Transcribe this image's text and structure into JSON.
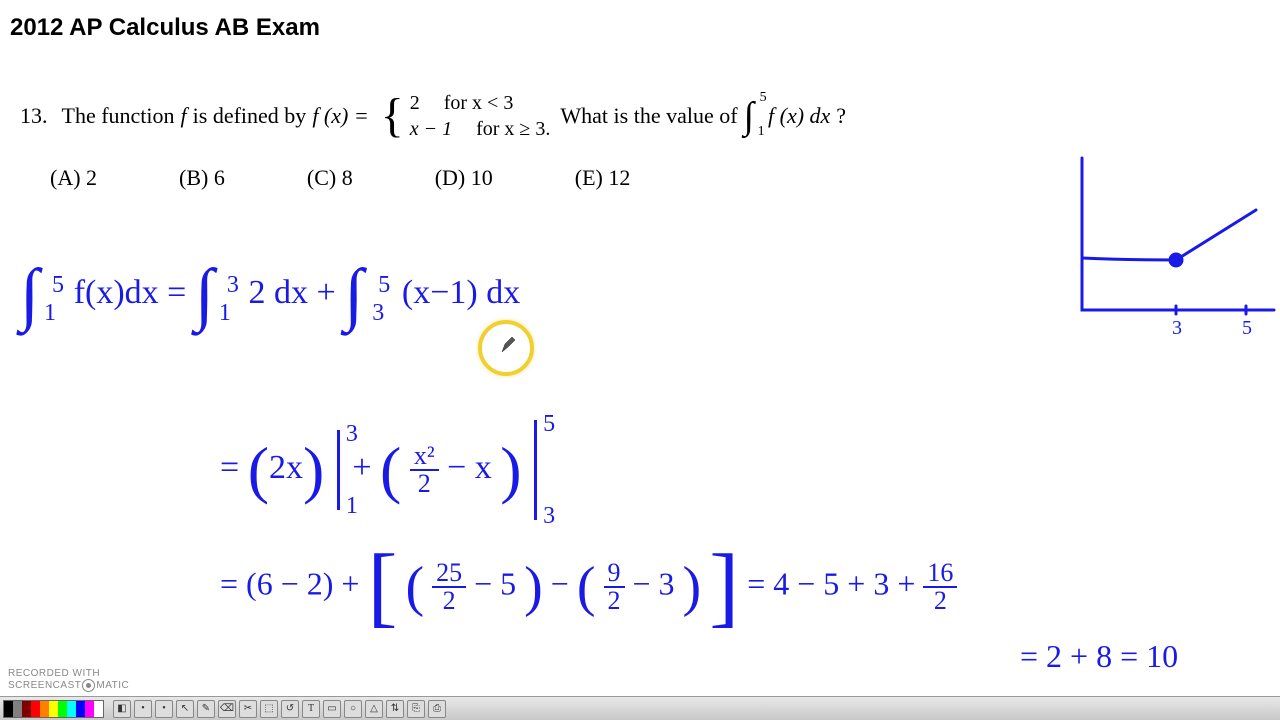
{
  "title": "2012 AP Calculus AB Exam",
  "question": {
    "number": "13.",
    "text_before": "The function ",
    "f_var": "f",
    "defined_by": " is defined by ",
    "fx": "f (x) = ",
    "case1_val": "2",
    "case1_cond": "for x < 3",
    "case2_val": "x − 1",
    "case2_cond": "for x ≥ 3.",
    "text_after": "  What is the value of ",
    "integral_low": "1",
    "integral_high": "5",
    "integrand": "f (x) dx",
    "qmark": " ?"
  },
  "answers": {
    "A": "(A)  2",
    "B": "(B)  6",
    "C": "(C)  8",
    "D": "(D)  10",
    "E": "(E)  12"
  },
  "handwork": {
    "line1_a": "∫",
    "l1_up1": "5",
    "l1_lo1": "1",
    "l1_mid1": " f(x)dx  =  ",
    "l1_up2": "3",
    "l1_lo2": "1",
    "l1_mid2": " 2 dx  + ",
    "l1_up3": "5",
    "l1_lo3": "3",
    "l1_mid3": " (x−1) dx",
    "line2_eq": "=  ",
    "l2_a": "(2x)",
    "l2_bar1_top": "3",
    "l2_bar1_bot": "1",
    "l2_plus": "  +   ",
    "l2_b_n": "x²",
    "l2_b_d": "2",
    "l2_b_rest": " − x",
    "l2_bar2_top": "5",
    "l2_bar2_bot": "3",
    "line3_eq": "=  ",
    "l3_a": "(6 − 2)  + ",
    "l3_br_a_n": "25",
    "l3_br_a_d": "2",
    "l3_br_a_rest": " − 5",
    "l3_minus": " − ",
    "l3_br_b_n": "9",
    "l3_br_b_d": "2",
    "l3_br_b_rest": " − 3",
    "l3_tail": " = 4 − 5 + 3 + ",
    "l3_tail_n": "16",
    "l3_tail_d": "2",
    "line4": "= 2 + 8 = 10"
  },
  "graph": {
    "stroke": "#1a1ae6",
    "stroke_width": 3,
    "x_tick1": "3",
    "x_tick2": "5"
  },
  "watermark": {
    "pre": "RECORDED WITH",
    "brand_a": "SCREENCAST",
    "brand_b": "MATIC"
  },
  "taskbar": {
    "palette": [
      "#000000",
      "#808080",
      "#800000",
      "#ff0000",
      "#ff8000",
      "#ffff00",
      "#00ff00",
      "#00ffff",
      "#0000ff",
      "#ff00ff",
      "#ffffff"
    ],
    "icons": [
      "◧",
      "•",
      "•",
      "↖",
      "✎",
      "⌫",
      "✂",
      "⬚",
      "↺",
      "T",
      "▭",
      "○",
      "△",
      "⇅",
      "⎘",
      "⎙"
    ]
  },
  "colors": {
    "ink": "#1a1ae6",
    "highlight": "#f0d030",
    "text": "#000000",
    "bg": "#ffffff"
  }
}
